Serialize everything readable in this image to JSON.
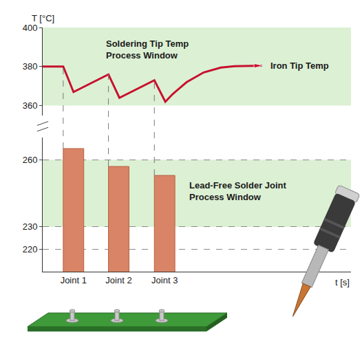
{
  "chart_data": {
    "type": "bar",
    "y_label": "T [°C]",
    "x_label": "t [s]",
    "categories": [
      "Joint 1",
      "Joint 2",
      "Joint 3"
    ],
    "x": [
      4.5,
      11.1,
      17.8
    ],
    "values": [
      265,
      257,
      253
    ],
    "color": "#d98466",
    "xlim": [
      0,
      45
    ],
    "ylim": [
      210,
      270
    ],
    "yticks": [
      220,
      230,
      260
    ],
    "y2lim": [
      355,
      400
    ],
    "y2ticks": [
      360,
      380,
      400
    ],
    "grid": true,
    "series": [
      {
        "name": "Iron Tip Temp",
        "type": "line",
        "axis": "y2",
        "color": "#c8102e",
        "marker": "arrow",
        "x": [
          0,
          3.0,
          4.5,
          9.6,
          11.2,
          16.3,
          17.9,
          19,
          21,
          23.5,
          26,
          28,
          32
        ],
        "values": [
          380,
          380,
          367,
          376,
          364,
          373,
          362,
          366,
          372,
          377,
          379.5,
          380.2,
          380.5
        ]
      }
    ],
    "bands": [
      {
        "label": "Soldering Tip Temp Process Window",
        "axis": "y2",
        "range": [
          360,
          400
        ],
        "color": "#d3ecc9"
      },
      {
        "label": "Lead-Free Solder Joint Process Window",
        "axis": "y",
        "range": [
          230,
          260
        ],
        "color": "#d3ecc9"
      }
    ]
  }
}
